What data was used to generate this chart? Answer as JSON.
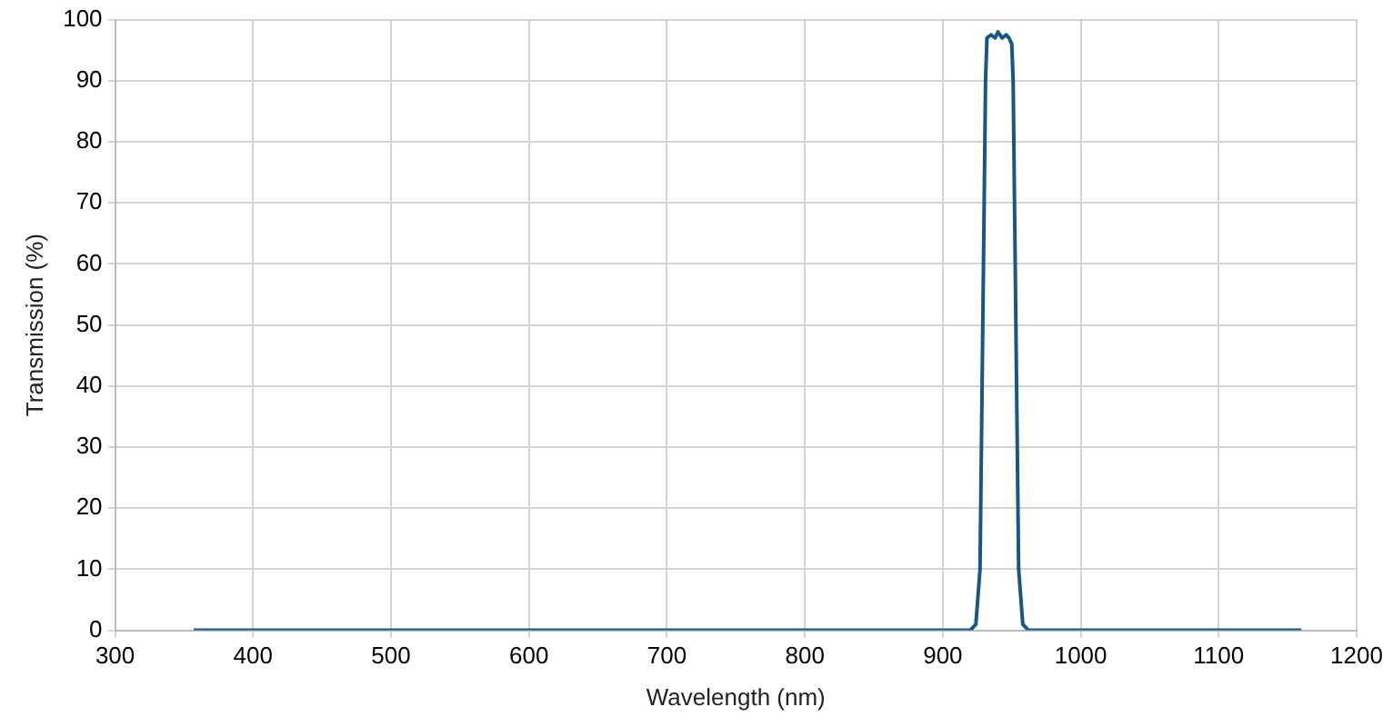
{
  "chart_data": {
    "type": "line",
    "xlabel": "Wavelength (nm)",
    "ylabel": "Transmission (%)",
    "x": [
      357,
      900,
      920,
      924,
      927,
      929,
      931,
      932,
      935,
      938,
      940,
      943,
      946,
      948,
      950,
      951,
      953,
      955,
      958,
      962,
      1160
    ],
    "series": [
      {
        "color": "#1b5583",
        "values": [
          0,
          0,
          0,
          1,
          10,
          50,
          90,
          97,
          97.5,
          97,
          98,
          97,
          97.5,
          97,
          96,
          90,
          50,
          10,
          1,
          0,
          0
        ]
      }
    ],
    "xlim": [
      300,
      1200
    ],
    "xticks": [
      300,
      400,
      500,
      600,
      700,
      800,
      900,
      1000,
      1100,
      1200
    ],
    "ylim": [
      0,
      100
    ],
    "yticks": [
      0,
      10,
      20,
      30,
      40,
      50,
      60,
      70,
      80,
      90,
      100
    ],
    "grid": true,
    "legend": false,
    "marker": "none",
    "line_style": "solid"
  }
}
